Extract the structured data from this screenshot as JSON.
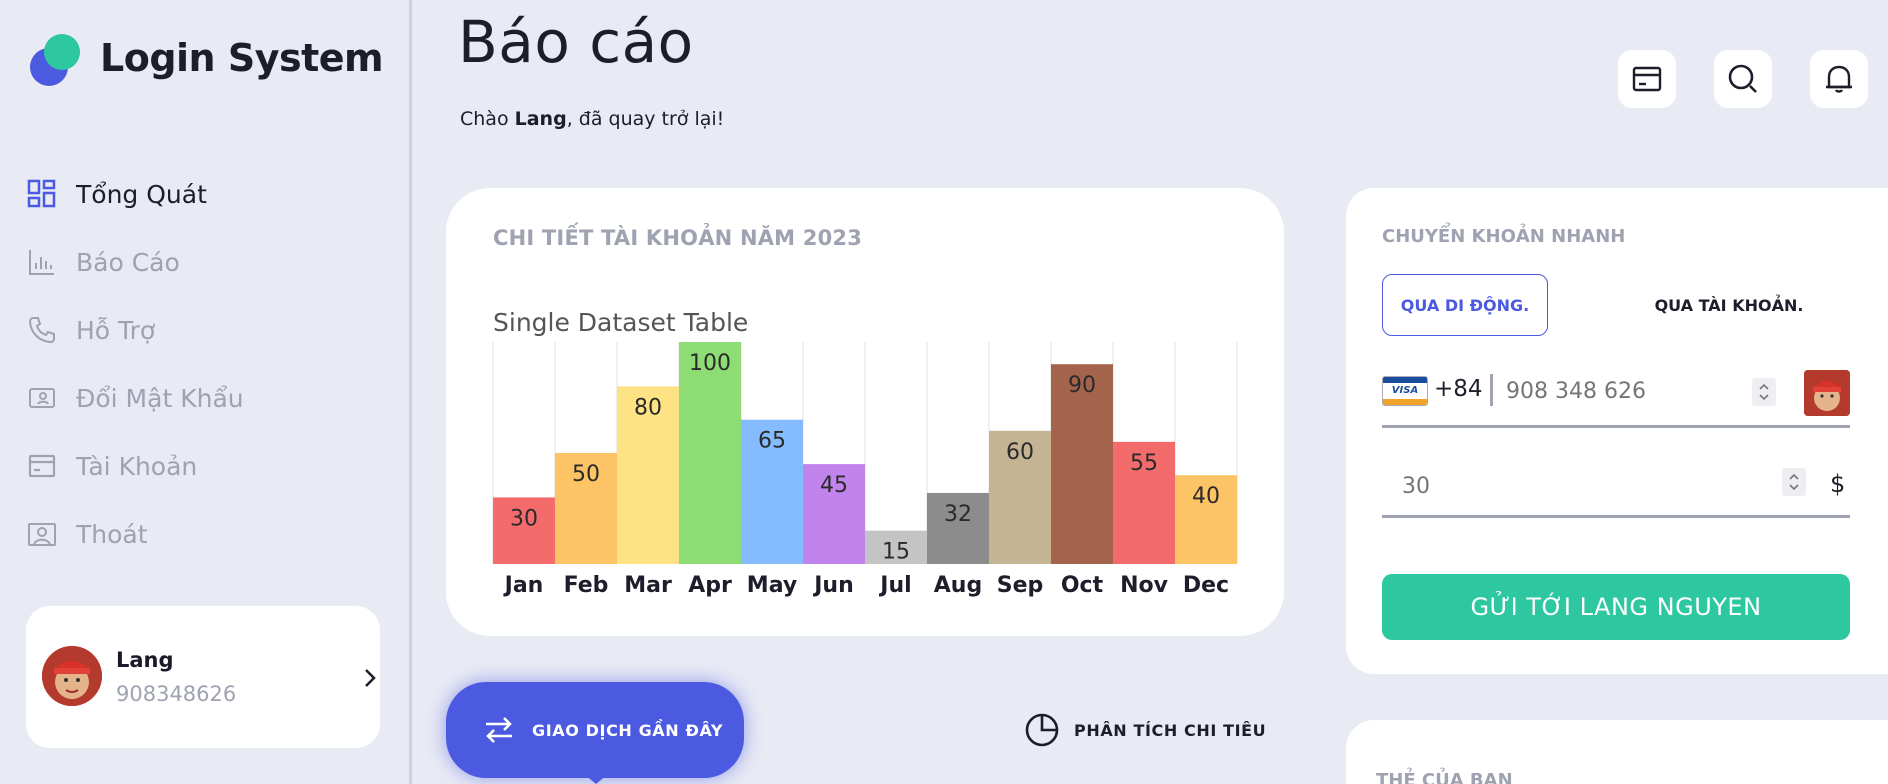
{
  "app": {
    "brand": "Login System"
  },
  "sidebar": {
    "items": [
      {
        "label": "Tổng Quát",
        "icon": "dashboard-icon",
        "active": true
      },
      {
        "label": "Báo Cáo",
        "icon": "report-chart-icon",
        "active": false
      },
      {
        "label": "Hỗ Trợ",
        "icon": "phone-icon",
        "active": false
      },
      {
        "label": "Đổi Mật Khẩu",
        "icon": "user-card-icon",
        "active": false
      },
      {
        "label": "Tài Khoản",
        "icon": "card-icon",
        "active": false
      },
      {
        "label": "Thoát",
        "icon": "portrait-icon",
        "active": false
      }
    ],
    "user": {
      "name": "Lang",
      "phone": "908348626"
    }
  },
  "header": {
    "title": "Báo cáo",
    "greeting_prefix": "Chào ",
    "greeting_name": "Lang",
    "greeting_suffix": ", đã quay trở lại!",
    "buttons": [
      "card-icon",
      "search-icon",
      "bell-icon"
    ]
  },
  "account_chart": {
    "heading": "CHI TIẾT TÀI KHOẢN NĂM 2023"
  },
  "chart_data": {
    "type": "bar",
    "title": "Single Dataset Table",
    "categories": [
      "Jan",
      "Feb",
      "Mar",
      "Apr",
      "May",
      "Jun",
      "Jul",
      "Aug",
      "Sep",
      "Oct",
      "Nov",
      "Dec"
    ],
    "values": [
      30,
      50,
      80,
      100,
      65,
      45,
      15,
      32,
      60,
      90,
      55,
      40
    ],
    "colors": [
      "#f46b6b",
      "#fcc464",
      "#fde384",
      "#8ddc74",
      "#84bcff",
      "#c084ec",
      "#c4c4c4",
      "#8c8c8c",
      "#c4b494",
      "#a4644c",
      "#f46b6b",
      "#fcc464"
    ],
    "ylim": [
      0,
      100
    ],
    "xlabel": "",
    "ylabel": "",
    "grid": "vertical",
    "data_labels": true
  },
  "transfer": {
    "heading": "CHUYỂN KHOẢN NHANH",
    "tab_mobile": "QUA DI ĐỘNG.",
    "tab_account": "QUA TÀI KHOẢN.",
    "card_brand": "VISA",
    "country_code": "+84",
    "phone_placeholder": "908 348 626",
    "amount_placeholder": "30",
    "currency": "$",
    "send_label": "GỬI TỚI LANG NGUYEN"
  },
  "bottom": {
    "recent_label": "GIAO DỊCH GẦN ĐÂY",
    "analysis_label": "PHÂN TÍCH CHI TIÊU",
    "cards_heading": "THẺ CỦA BẠN"
  }
}
